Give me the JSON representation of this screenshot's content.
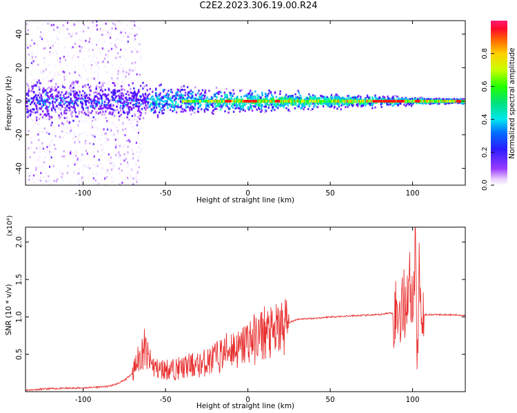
{
  "title": "C2E2.2023.306.19.00.R24",
  "chart_data": [
    {
      "type": "heatmap",
      "title": "C2E2.2023.306.19.00.R24",
      "xlabel": "Height of straight line (km)",
      "ylabel": "Frequency (Hz)",
      "xlim": [
        -135,
        132
      ],
      "ylim": [
        -50,
        48
      ],
      "x_ticks": [
        -100,
        -50,
        0,
        50,
        100
      ],
      "x_tick_labels": [
        "-100",
        "-50",
        "0",
        "50",
        "100"
      ],
      "y_ticks": [
        -40,
        -20,
        0,
        20,
        40
      ],
      "y_tick_labels": [
        "-40",
        "-20",
        "0",
        "20",
        "40"
      ],
      "colorbar": {
        "label": "Normalized spectral amplitude",
        "range": [
          0,
          1
        ],
        "ticks": [
          0.0,
          0.2,
          0.4,
          0.6,
          0.8
        ],
        "tick_labels": [
          "0.0",
          "0.2",
          "0.4",
          "0.6",
          "0.8"
        ],
        "colormap": "hsv-reversed (magenta-purple-blue-cyan-green-yellow-orange-red)"
      },
      "grid": false
    },
    {
      "type": "line",
      "xlabel": "Height of straight line (km)",
      "ylabel": "SNR (10 * v/v)",
      "y_multiplier_label": "(x10⁴)",
      "xlim": [
        -135,
        132
      ],
      "ylim": [
        0,
        2.2
      ],
      "x_ticks": [
        -100,
        -50,
        0,
        50,
        100
      ],
      "x_tick_labels": [
        "-100",
        "-50",
        "0",
        "50",
        "100"
      ],
      "y_ticks": [
        0.5,
        1.0,
        1.5,
        2.0
      ],
      "y_tick_labels": [
        "0.5",
        "1.0",
        "1.5",
        "2.0"
      ],
      "line_color": "#e83030",
      "grid": false,
      "series": [
        {
          "x": [
            -135,
            -120,
            -100,
            -85,
            -80,
            -75,
            -70,
            -66,
            -63,
            -60,
            -55,
            -50,
            -45,
            -40,
            -35,
            -30,
            -25,
            -20,
            -15,
            -10,
            -5,
            0,
            5,
            10,
            15,
            20,
            25,
            30,
            40,
            50,
            60,
            70,
            80,
            85,
            90,
            93,
            96,
            98,
            100,
            102,
            103,
            104,
            106,
            110,
            120,
            132
          ],
          "y": [
            0.02,
            0.04,
            0.05,
            0.07,
            0.1,
            0.15,
            0.25,
            0.45,
            0.6,
            0.4,
            0.3,
            0.3,
            0.3,
            0.32,
            0.35,
            0.35,
            0.4,
            0.45,
            0.5,
            0.6,
            0.55,
            0.7,
            0.7,
            0.8,
            0.75,
            0.85,
            0.92,
            0.97,
            0.98,
            1.0,
            1.01,
            1.02,
            1.03,
            1.05,
            1.05,
            1.1,
            1.2,
            1.5,
            1.2,
            1.9,
            0.3,
            1.6,
            1.03,
            1.03,
            1.03,
            1.02
          ]
        }
      ]
    }
  ]
}
